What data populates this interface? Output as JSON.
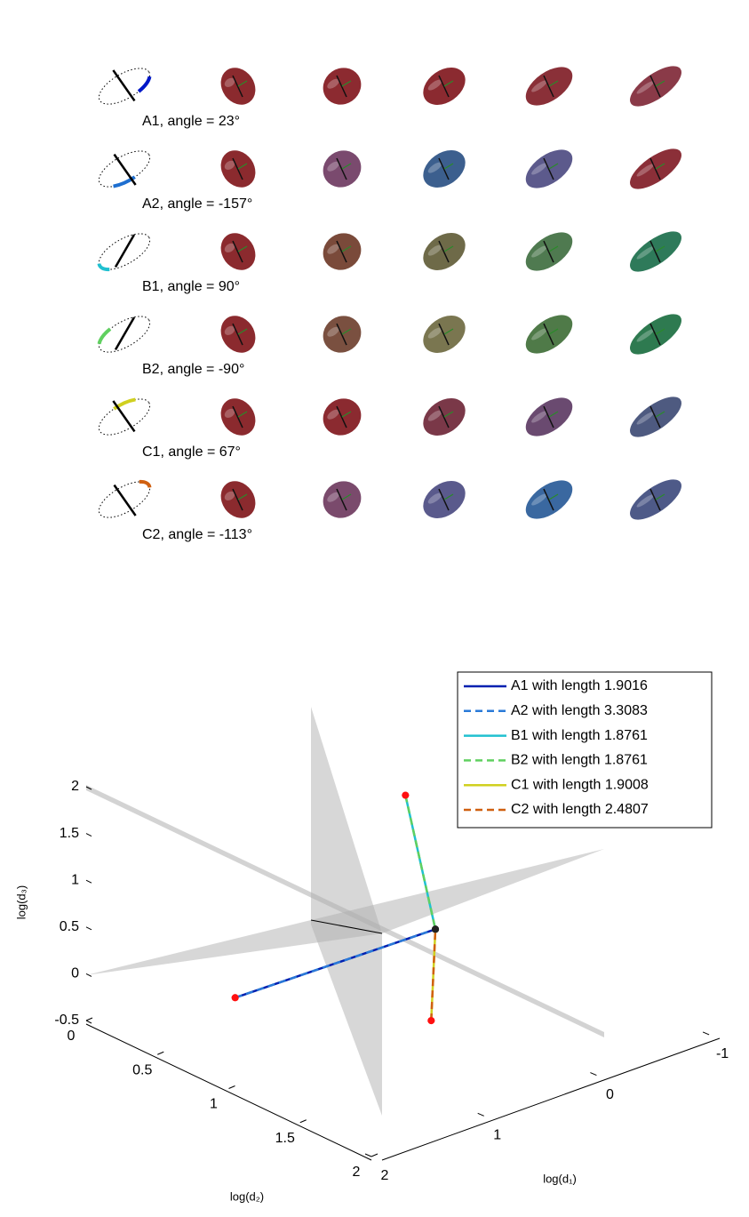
{
  "panel": {
    "rows": [
      {
        "label": "A1, angle = 23°",
        "arc_color": "#0018c8",
        "colors": [
          "#8b2a2e",
          "#8c2a30",
          "#8b2a30",
          "#8a3038",
          "#8a3a48"
        ]
      },
      {
        "label": "A2, angle = -157°",
        "arc_color": "#1e6fd0",
        "colors": [
          "#8b2a2e",
          "#7a4a6e",
          "#3c5f8e",
          "#5c5a8c",
          "#8b2f38"
        ]
      },
      {
        "label": "B1, angle = 90°",
        "arc_color": "#20c0d0",
        "colors": [
          "#8b2a2e",
          "#7a4a3a",
          "#6e6a48",
          "#4f7a50",
          "#2e7a5a"
        ]
      },
      {
        "label": "B2, angle = -90°",
        "arc_color": "#60d060",
        "colors": [
          "#8b2a2e",
          "#7a5040",
          "#7a7650",
          "#4f7a48",
          "#2e7a50"
        ]
      },
      {
        "label": "C1, angle = 67°",
        "arc_color": "#d0d020",
        "colors": [
          "#8b2a2e",
          "#8b2a30",
          "#7a3848",
          "#6a4a70",
          "#4e5a80"
        ]
      },
      {
        "label": "C2, angle = -113°",
        "arc_color": "#d06010",
        "colors": [
          "#8b2a2e",
          "#7a4a6c",
          "#5a5a8c",
          "#3a68a0",
          "#4e5a88"
        ]
      }
    ]
  },
  "chart_data": {
    "type": "line3d",
    "xlabel": "log(d₁)",
    "ylabel": "log(d₂)",
    "zlabel": "log(d₃)",
    "xlim": [
      -1,
      2
    ],
    "ylim": [
      0,
      2
    ],
    "zlim": [
      -0.5,
      2
    ],
    "xticks": [
      -1,
      0,
      1,
      2
    ],
    "yticks": [
      0,
      0.5,
      1,
      1.5,
      2
    ],
    "zticks": [
      -0.5,
      0,
      0.5,
      1,
      1.5,
      2
    ],
    "legend": "upper right",
    "series": [
      {
        "name": "A1 with length 1.9016",
        "color": "#0020b0",
        "dashed": false,
        "x": [
          1.5,
          0
        ],
        "y": [
          0.65,
          0.87
        ],
        "z": [
          0,
          0.24
        ]
      },
      {
        "name": "A2 with length 3.3083",
        "color": "#2a7ad8",
        "dashed": true,
        "x": [
          1.5,
          0
        ],
        "y": [
          0.65,
          0.87
        ],
        "z": [
          0,
          0.24
        ]
      },
      {
        "name": "B1 with length 1.8761",
        "color": "#20c0d0",
        "dashed": false,
        "x": [
          0,
          0
        ],
        "y": [
          0.66,
          0.87
        ],
        "z": [
          1.52,
          0.24
        ]
      },
      {
        "name": "B2 with length 1.8761",
        "color": "#60d060",
        "dashed": true,
        "x": [
          0,
          0
        ],
        "y": [
          0.66,
          0.87
        ],
        "z": [
          1.52,
          0.24
        ]
      },
      {
        "name": "C1 with length 1.9008",
        "color": "#d0d020",
        "dashed": false,
        "x": [
          1,
          0
        ],
        "y": [
          1.63,
          0.87
        ],
        "z": [
          0.25,
          0.24
        ]
      },
      {
        "name": "C2 with length 2.4807",
        "color": "#d06010",
        "dashed": true,
        "x": [
          1,
          0
        ],
        "y": [
          1.63,
          0.87
        ],
        "z": [
          0.25,
          0.24
        ]
      }
    ]
  }
}
